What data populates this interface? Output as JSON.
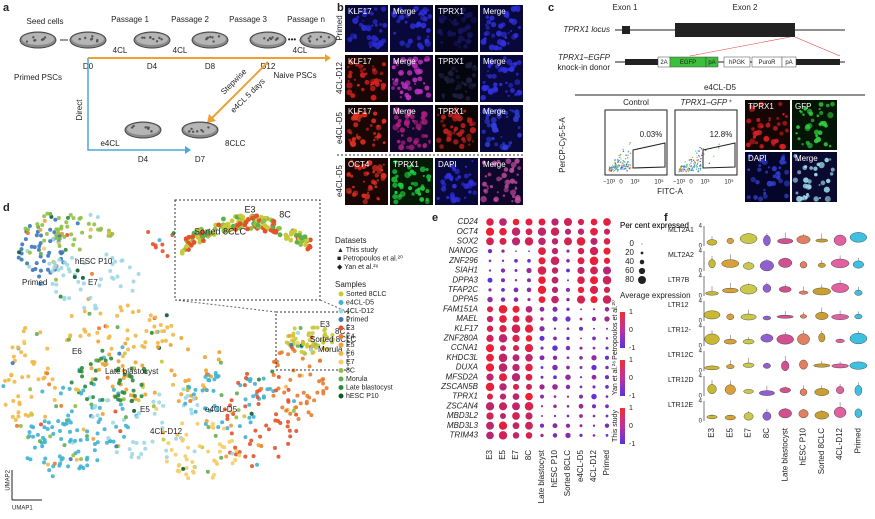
{
  "panel_a": {
    "label": "a",
    "seed": "Seed cells",
    "passages": [
      "Passage 1",
      "Passage 2",
      "Passage 3",
      "Passage n"
    ],
    "ellipsis": "•••",
    "media_top": [
      "4CL",
      "4CL",
      "4CL"
    ],
    "days_top": [
      "D0",
      "D4",
      "D8",
      "D12"
    ],
    "primed": "Primed PSCs",
    "naive": "Naive PSCs",
    "direct": "Direct",
    "stepwise": "Stepwise",
    "stepwise_detail": "e4CL 5 days",
    "media_bottom": "e4CL",
    "days_bottom": [
      "D4",
      "D7"
    ],
    "result": "8CLC"
  },
  "panel_b": {
    "label": "b",
    "columns": [
      "KLF17",
      "Merge",
      "TPRX1",
      "Merge"
    ],
    "last_columns": [
      "OCT4",
      "TPRX1",
      "DAPI",
      "Merge"
    ],
    "rows": [
      "Primed",
      "4CL-D12",
      "e4CL-D5",
      "e4CL-D5"
    ]
  },
  "panel_c": {
    "label": "c",
    "locus": "TPRX1 locus",
    "exon1": "Exon 1",
    "exon2": "Exon 2",
    "donor": "TPRX1–EGFP",
    "donor2": "knock-in donor",
    "donor_parts": [
      "2A",
      "EGFP",
      "pA",
      "hPGK",
      "PuroR",
      "pA"
    ],
    "condition": "e4CL-D5",
    "gates": [
      "Control",
      "TPRX1–GFP⁺"
    ],
    "percentages": [
      "0.03%",
      "12.8%"
    ],
    "y_label": "PerCP-Cy5-5-A",
    "x_label": "FITC-A",
    "x_ticks": [
      "−10³",
      "0",
      "10³",
      "10⁵"
    ],
    "images": [
      "TPRX1",
      "GFP",
      "DAPI",
      "Merge"
    ]
  },
  "panel_d": {
    "label": "d",
    "datasets_title": "Datasets",
    "datasets": [
      "▲ This study",
      "■ Petropoulos et al.²⁰",
      "◆ Yan et al.²⁶"
    ],
    "samples_title": "Samples",
    "samples": [
      {
        "name": "Sorted 8CLC",
        "color": "#c9c93a"
      },
      {
        "name": "e4CL-D5",
        "color": "#3fb3d3"
      },
      {
        "name": "4CL-D12",
        "color": "#9fd7e6"
      },
      {
        "name": "Primed",
        "color": "#3c78b8"
      },
      {
        "name": "E3",
        "color": "#e5512b"
      },
      {
        "name": "E4",
        "color": "#e97b2c"
      },
      {
        "name": "E5",
        "color": "#f0a232"
      },
      {
        "name": "E6",
        "color": "#f3b745"
      },
      {
        "name": "E7",
        "color": "#f6cd66"
      },
      {
        "name": "8C",
        "color": "#8fc043"
      },
      {
        "name": "Morula",
        "color": "#5fae4d"
      },
      {
        "name": "Late blastocyst",
        "color": "#2e8b3e"
      },
      {
        "name": "hESC P10",
        "color": "#0f5a2c"
      }
    ],
    "cluster_labels": [
      "hESC P10",
      "Primed",
      "E7",
      "E6",
      "Late blastocyst",
      "E5",
      "4CL-D12",
      "e4CL-D5",
      "E3",
      "8C",
      "Sorted 8CLC",
      "Morula"
    ],
    "inset_labels": [
      "E3",
      "8C",
      "Sorted 8CLC"
    ],
    "axis_y": "UMAP2",
    "axis_x": "UMAP1"
  },
  "panel_e": {
    "label": "e",
    "genes": [
      "CD24",
      "OCT4",
      "SOX2",
      "NANOG",
      "ZNF296",
      "SIAH1",
      "DPPA3",
      "TFAP2C",
      "DPPA5",
      "FAM151A",
      "MAEL",
      "KLF17",
      "ZNF280A",
      "CCNA1",
      "KHDC3L",
      "DUXA",
      "MFSD2A",
      "ZSCAN5B",
      "TPRX1",
      "ZSCAN4",
      "MBD3L2",
      "MBD3L3",
      "TRIM43"
    ],
    "columns": [
      "E3",
      "E5",
      "E7",
      "8C",
      "Late blastocyst",
      "hESC P10",
      "Sorted 8CLC",
      "e4CL-D5",
      "4CL-D12",
      "Primed"
    ],
    "size_title": "Per cent expressed",
    "sizes": [
      0,
      20,
      40,
      60,
      80
    ],
    "color_title": "Average expression",
    "colorbars": [
      "Petropoulos et al.²⁰",
      "Yan et al.²⁶",
      "This study"
    ],
    "colorbar_ticks": [
      1,
      0,
      -1
    ]
  },
  "panel_f": {
    "label": "f",
    "rows": [
      "MLT2A1",
      "MLT2A2",
      "LTR7B",
      "LTR12",
      "LTR12-",
      "LTR12C",
      "LTR12D",
      "LTR12E"
    ],
    "row_ticks": [
      4,
      0
    ],
    "columns": [
      "E3",
      "E5",
      "E7",
      "8C",
      "Late blastocyst",
      "hESC P10",
      "Sorted 8CLC",
      "4CL-D12",
      "Primed"
    ]
  }
}
